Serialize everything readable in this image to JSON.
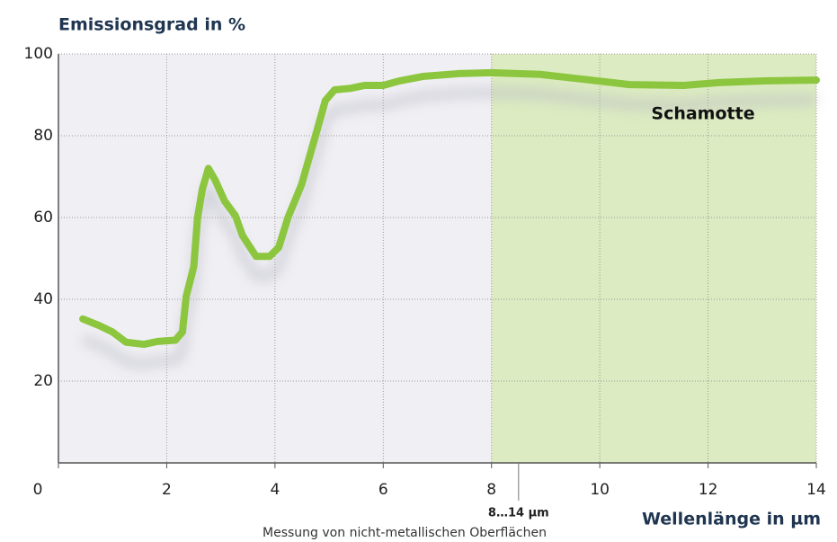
{
  "chart_data": {
    "type": "line",
    "title": "Emissionsgrad in %",
    "x_label": "Wellenlänge in µm",
    "subtitle": "Messung von nicht-metallischen Oberflächen",
    "xlim": [
      0,
      14
    ],
    "xticks": [
      0,
      2,
      4,
      6,
      8,
      10,
      12,
      14
    ],
    "ylim": [
      0,
      100
    ],
    "yticks": [
      20,
      40,
      60,
      80,
      100
    ],
    "grid": true,
    "highlight_range": [
      8,
      14
    ],
    "highlight_color": "#dcebc1",
    "annotations": [
      {
        "text": "8…14 µm",
        "x": 8.5
      }
    ],
    "series": [
      {
        "name": "Schamotte",
        "color": "#8cc63f",
        "x": [
          0.45,
          0.75,
          1.0,
          1.25,
          1.58,
          1.83,
          2.16,
          2.29,
          2.36,
          2.5,
          2.57,
          2.66,
          2.77,
          2.9,
          3.07,
          3.27,
          3.4,
          3.65,
          3.9,
          4.07,
          4.24,
          4.49,
          4.77,
          4.93,
          5.1,
          5.4,
          5.65,
          6.0,
          6.3,
          6.73,
          7.4,
          8.0,
          8.9,
          9.7,
          10.55,
          11.55,
          12.2,
          13.04,
          14.0
        ],
        "values": [
          35.2,
          33.6,
          32,
          29.5,
          29,
          29.7,
          30,
          32,
          40.7,
          48,
          60,
          67,
          72,
          69,
          64,
          60.4,
          55.6,
          50.5,
          50.5,
          52.7,
          60,
          68,
          81,
          88.6,
          91.2,
          91.6,
          92.3,
          92.3,
          93.4,
          94.5,
          95.2,
          95.4,
          95,
          93.8,
          92.5,
          92.3,
          93,
          93.4,
          93.6
        ]
      }
    ]
  }
}
